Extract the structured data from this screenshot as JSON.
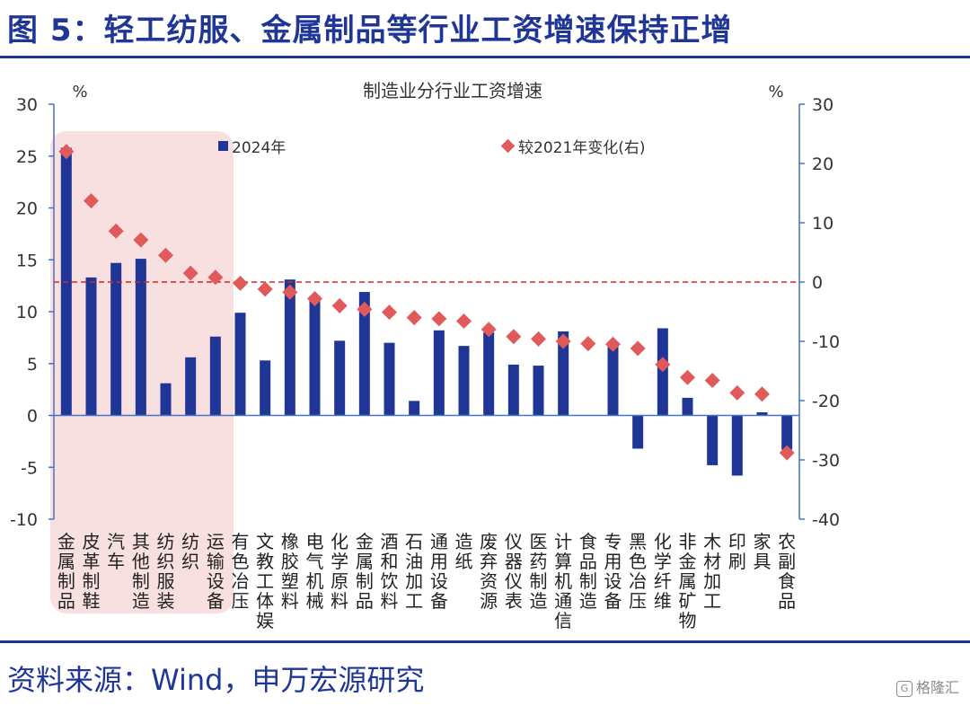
{
  "figure_title": "图 5：轻工纺服、金属制品等行业工资增速保持正增",
  "source": "资料来源：Wind，申万宏源研究",
  "watermark": "格隆汇",
  "colors": {
    "title": "#1f3696",
    "bar": "#1f3696",
    "marker": "#e05a5a",
    "axis": "#4472c4",
    "zero_line": "#d62728",
    "highlight": "#f9e0e0"
  },
  "chart_data": {
    "type": "bar",
    "title": "制造业分行业工资增速",
    "ylabel_left": "%",
    "ylabel_right": "%",
    "ylim_left": [
      -10,
      30
    ],
    "yticks_left": [
      30,
      25,
      20,
      15,
      10,
      5,
      0,
      -5,
      -10
    ],
    "ylim_right": [
      -40,
      30
    ],
    "yticks_right": [
      30,
      20,
      10,
      0,
      -10,
      -20,
      -30,
      -40
    ],
    "grid": false,
    "legend_position": "top",
    "highlight_categories": 7,
    "categories": [
      "金属制品",
      "皮革制鞋",
      "汽车",
      "其他制造",
      "纺织服装",
      "纺织",
      "运输设备",
      "有色冶压",
      "文教工体娱",
      "橡胶塑料",
      "电气机械",
      "化学原料",
      "金属制品",
      "酒和饮料",
      "石油加工",
      "通用设备",
      "造纸",
      "废弃资源",
      "仪器仪表",
      "医药制造",
      "计算机通信",
      "食品制造",
      "专用设备",
      "黑色冶压",
      "化学纤维",
      "非金属矿物",
      "木材加工",
      "印刷",
      "家具",
      "农副食品"
    ],
    "series": [
      {
        "name": "2024年",
        "type": "bar",
        "axis": "left",
        "values": [
          25.8,
          13.3,
          14.7,
          15.1,
          3.1,
          5.6,
          7.6,
          9.9,
          5.3,
          13.1,
          11.5,
          7.2,
          11.9,
          7.0,
          1.4,
          8.2,
          6.7,
          8.0,
          4.9,
          4.8,
          8.1,
          0.0,
          7.0,
          -3.2,
          8.4,
          1.7,
          -4.8,
          -5.8,
          0.3,
          -3.3
        ]
      },
      {
        "name": "较2021年变化(右)",
        "type": "scatter",
        "axis": "right",
        "values": [
          22,
          13.7,
          8.6,
          7.1,
          4.5,
          1.5,
          0.8,
          -0.2,
          -1.2,
          -1.7,
          -2.8,
          -4.0,
          -4.6,
          -5.1,
          -6.0,
          -6.2,
          -6.6,
          -8.0,
          -9.2,
          -9.6,
          -10.0,
          -10.4,
          -10.5,
          -11.2,
          -13.9,
          -16.1,
          -16.6,
          -18.7,
          -18.9,
          -28.8
        ]
      }
    ]
  }
}
